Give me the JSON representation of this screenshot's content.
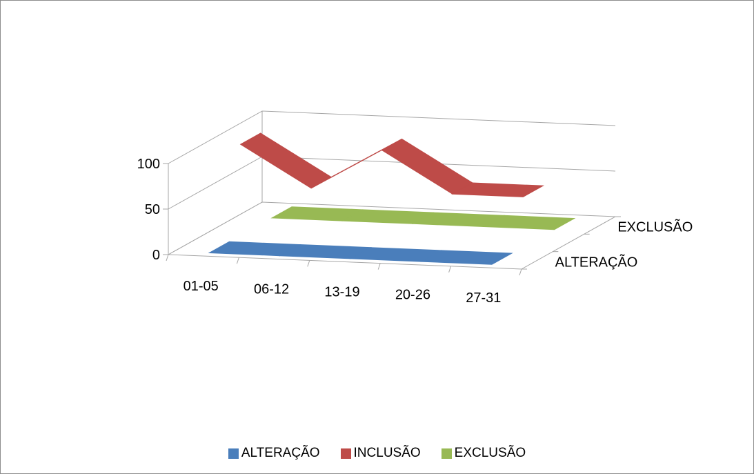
{
  "chart_data": {
    "type": "line",
    "style": "3d-line",
    "categories": [
      "01-05",
      "06-12",
      "13-19",
      "20-26",
      "27-31"
    ],
    "series": [
      {
        "name": "ALTERAÇÃO",
        "values": [
          0,
          0,
          0,
          0,
          0
        ],
        "color": "#4a7ebb"
      },
      {
        "name": "INCLUSÃO",
        "values": [
          100,
          55,
          100,
          55,
          55
        ],
        "color": "#be4b48"
      },
      {
        "name": "EXCLUSÃO",
        "values": [
          0,
          0,
          0,
          0,
          0
        ],
        "color": "#98b954"
      }
    ],
    "depth_labels": [
      "ALTERAÇÃO",
      "EXCLUSÃO"
    ],
    "y_ticks": [
      "0",
      "50",
      "100"
    ],
    "ylim": [
      0,
      100
    ],
    "grid": true,
    "legend": "bottom"
  }
}
